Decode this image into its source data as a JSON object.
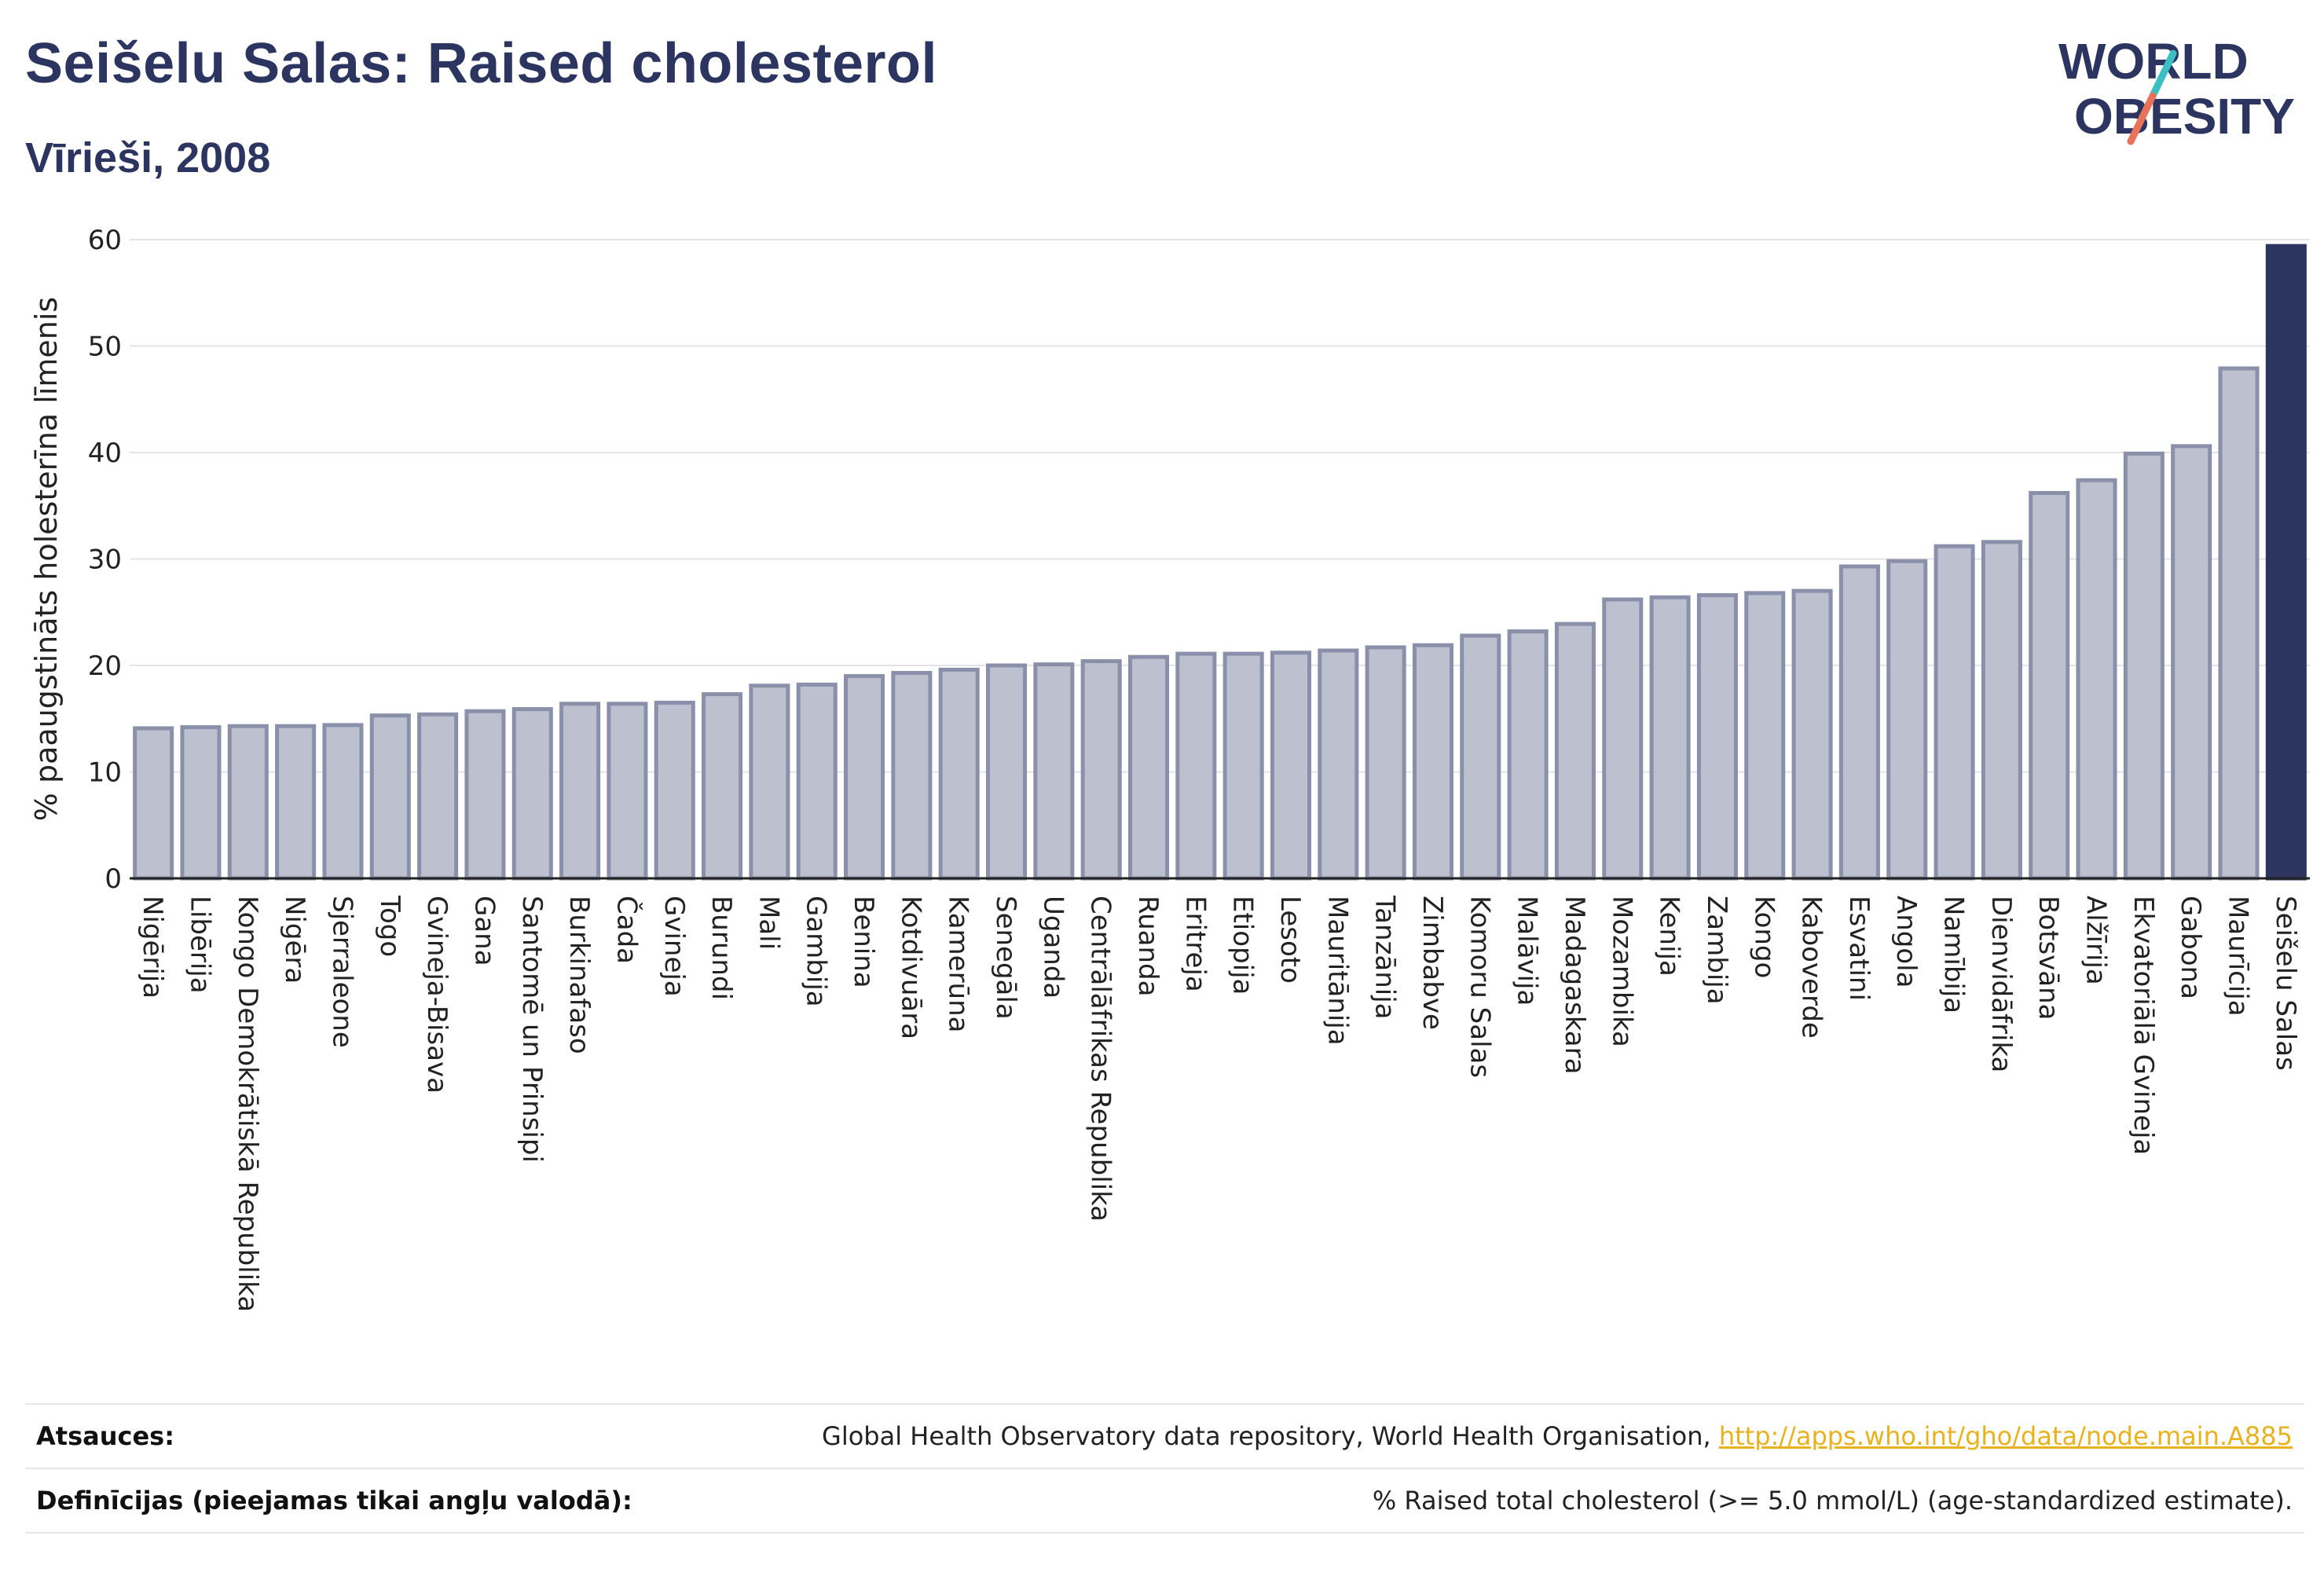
{
  "header": {
    "title": "Seišelu Salas: Raised cholesterol",
    "subtitle": "Vīrieši, 2008"
  },
  "logo": {
    "line1": "WORLD",
    "line2": "OBESITY",
    "name": "world-obesity-logo"
  },
  "colors": {
    "title": "#2c3560",
    "bar_fill": "#bcc0cf",
    "bar_stroke": "#8a90aa",
    "highlight": "#2c3560",
    "link": "#e8b21f",
    "logo_slash_top": "#3bbfc0",
    "logo_slash_bottom": "#e8735a"
  },
  "chart_data": {
    "type": "bar",
    "ylabel": "% paaugstināts holesterīna līmenis",
    "xlabel": "",
    "ylim": [
      0,
      60
    ],
    "yticks": [
      0,
      10,
      20,
      30,
      40,
      50,
      60
    ],
    "grid": true,
    "highlight_category": "Seišelu Salas",
    "categories": [
      "Nigērija",
      "Libērija",
      "Kongo Demokrātiskā Republika",
      "Nigēra",
      "Sjerraleone",
      "Togo",
      "Gvineja-Bisava",
      "Gana",
      "Santomē un Prinsipi",
      "Burkinafaso",
      "Čada",
      "Gvineja",
      "Burundi",
      "Mali",
      "Gambija",
      "Benina",
      "Kotdivuāra",
      "Kamerūna",
      "Senegāla",
      "Uganda",
      "Centrālāfrikas Republika",
      "Ruanda",
      "Eritreja",
      "Etiopija",
      "Lesoto",
      "Mauritānija",
      "Tanzānija",
      "Zimbabve",
      "Komoru Salas",
      "Malāvija",
      "Madagaskara",
      "Mozambika",
      "Kenija",
      "Zambija",
      "Kongo",
      "Kaboverde",
      "Esvatini",
      "Angola",
      "Namībija",
      "Dienvidāfrika",
      "Botsvāna",
      "Alžīrija",
      "Ekvatoriālā Gvineja",
      "Gabona",
      "Maurīcija",
      "Seišelu Salas"
    ],
    "values": [
      14.1,
      14.2,
      14.3,
      14.3,
      14.4,
      15.3,
      15.4,
      15.7,
      15.9,
      16.4,
      16.4,
      16.5,
      17.3,
      18.1,
      18.2,
      19.0,
      19.3,
      19.6,
      20.0,
      20.1,
      20.4,
      20.8,
      21.1,
      21.1,
      21.2,
      21.4,
      21.7,
      21.9,
      22.8,
      23.2,
      23.9,
      26.2,
      26.4,
      26.6,
      26.8,
      27.0,
      29.3,
      29.8,
      31.2,
      31.6,
      36.2,
      37.4,
      39.9,
      40.6,
      47.9,
      59.4
    ]
  },
  "footer": {
    "sources_label": "Atsauces:",
    "sources_text": "Global Health Observatory data repository, World Health Organisation, ",
    "sources_link": "http://apps.who.int/gho/data/node.main.A885",
    "definitions_label": "Definīcijas (pieejamas tikai angļu valodā):",
    "definitions_text": "% Raised total cholesterol (>= 5.0 mmol/L) (age-standardized estimate)."
  }
}
